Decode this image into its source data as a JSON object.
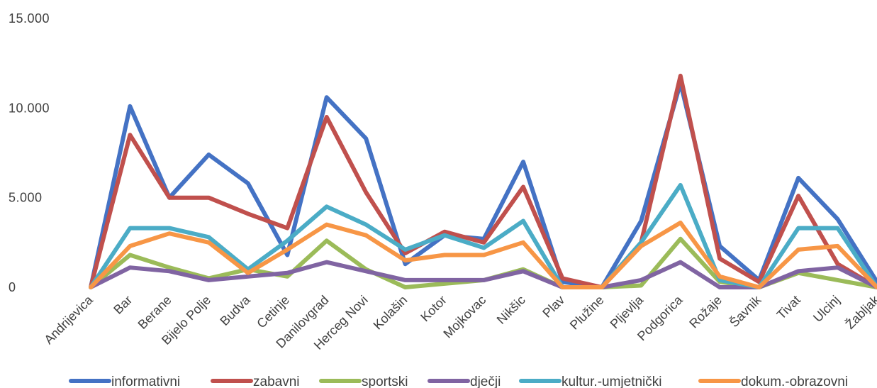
{
  "chart_data": {
    "type": "line",
    "title": "",
    "xlabel": "",
    "ylabel": "",
    "ylim": [
      0,
      15000
    ],
    "yticks": [
      0,
      5000,
      10000,
      15000
    ],
    "ytick_labels": [
      "0",
      "5.000",
      "10.000",
      "15.000"
    ],
    "grid": false,
    "legend_position": "bottom",
    "categories": [
      "Andrijevica",
      "Bar",
      "Berane",
      "Bijelo Polje",
      "Budva",
      "Cetinje",
      "Danilovgrad",
      "Herceg Novi",
      "Kolašin",
      "Kotor",
      "Mojkovac",
      "Nikšic",
      "Plav",
      "Plužine",
      "Pljevlja",
      "Podgorica",
      "Rožaje",
      "Šavnik",
      "Tivat",
      "Ulcinj",
      "Žabljak"
    ],
    "series": [
      {
        "name": "informativni",
        "color": "#4472c4",
        "values": [
          0,
          10100,
          5000,
          7400,
          5800,
          1800,
          10600,
          8300,
          1300,
          2900,
          2700,
          7000,
          300,
          0,
          3700,
          11400,
          2300,
          400,
          6100,
          3800,
          300
        ]
      },
      {
        "name": "zabavni",
        "color": "#c0504d",
        "values": [
          0,
          8500,
          5000,
          5000,
          4100,
          3300,
          9500,
          5300,
          1900,
          3100,
          2500,
          5600,
          500,
          0,
          2500,
          11800,
          1600,
          300,
          5100,
          1300,
          0
        ]
      },
      {
        "name": "sportski",
        "color": "#9bbb59",
        "values": [
          0,
          1800,
          1100,
          500,
          1000,
          600,
          2600,
          1000,
          0,
          200,
          400,
          1000,
          0,
          0,
          100,
          2700,
          300,
          0,
          800,
          400,
          0
        ]
      },
      {
        "name": "dječji",
        "color": "#8064a2",
        "values": [
          0,
          1100,
          900,
          400,
          600,
          800,
          1400,
          900,
          400,
          400,
          400,
          900,
          0,
          0,
          400,
          1400,
          0,
          0,
          900,
          1100,
          0
        ]
      },
      {
        "name": "kultur.-umjetnički",
        "color": "#4bacc6",
        "values": [
          0,
          3300,
          3300,
          2800,
          1000,
          2600,
          4500,
          3500,
          2100,
          2900,
          2200,
          3700,
          0,
          0,
          2500,
          5700,
          400,
          0,
          3300,
          3300,
          0
        ]
      },
      {
        "name": "dokum.-obrazovni",
        "color": "#f79646",
        "values": [
          0,
          2300,
          3000,
          2500,
          800,
          2100,
          3500,
          2900,
          1500,
          1800,
          1800,
          2500,
          0,
          0,
          2300,
          3600,
          600,
          0,
          2100,
          2300,
          0
        ]
      }
    ]
  }
}
